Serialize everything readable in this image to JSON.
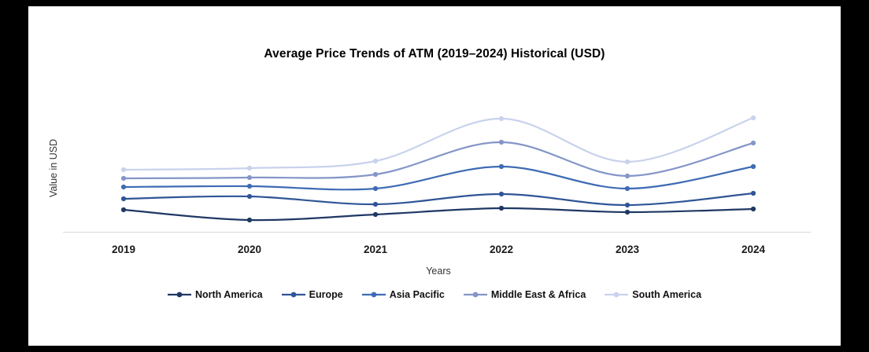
{
  "chart_data": {
    "type": "line",
    "title": "Average Price Trends of ATM (2019–2024) Historical (USD)",
    "xlabel": "Years",
    "ylabel": "Value in USD",
    "categories": [
      "2019",
      "2020",
      "2021",
      "2022",
      "2023",
      "2024"
    ],
    "series": [
      {
        "name": "North America",
        "color": "#1F3864",
        "values": [
          28,
          15,
          22,
          30,
          25,
          29
        ]
      },
      {
        "name": "Europe",
        "color": "#2F5597",
        "values": [
          42,
          45,
          35,
          48,
          34,
          49
        ]
      },
      {
        "name": "Asia Pacific",
        "color": "#3E6BB4",
        "values": [
          57,
          58,
          55,
          83,
          55,
          83
        ]
      },
      {
        "name": "Middle East & Africa",
        "color": "#8496C8",
        "values": [
          68,
          69,
          73,
          114,
          71,
          113
        ]
      },
      {
        "name": "South America",
        "color": "#C9D2EC",
        "values": [
          79,
          81,
          90,
          144,
          89,
          145
        ]
      }
    ],
    "ylim": [
      0,
      170
    ],
    "grid": false,
    "legend_position": "bottom",
    "axis_line_color": "#d9d9d9",
    "background_color": "#ffffff",
    "frame_color": "#000000"
  }
}
